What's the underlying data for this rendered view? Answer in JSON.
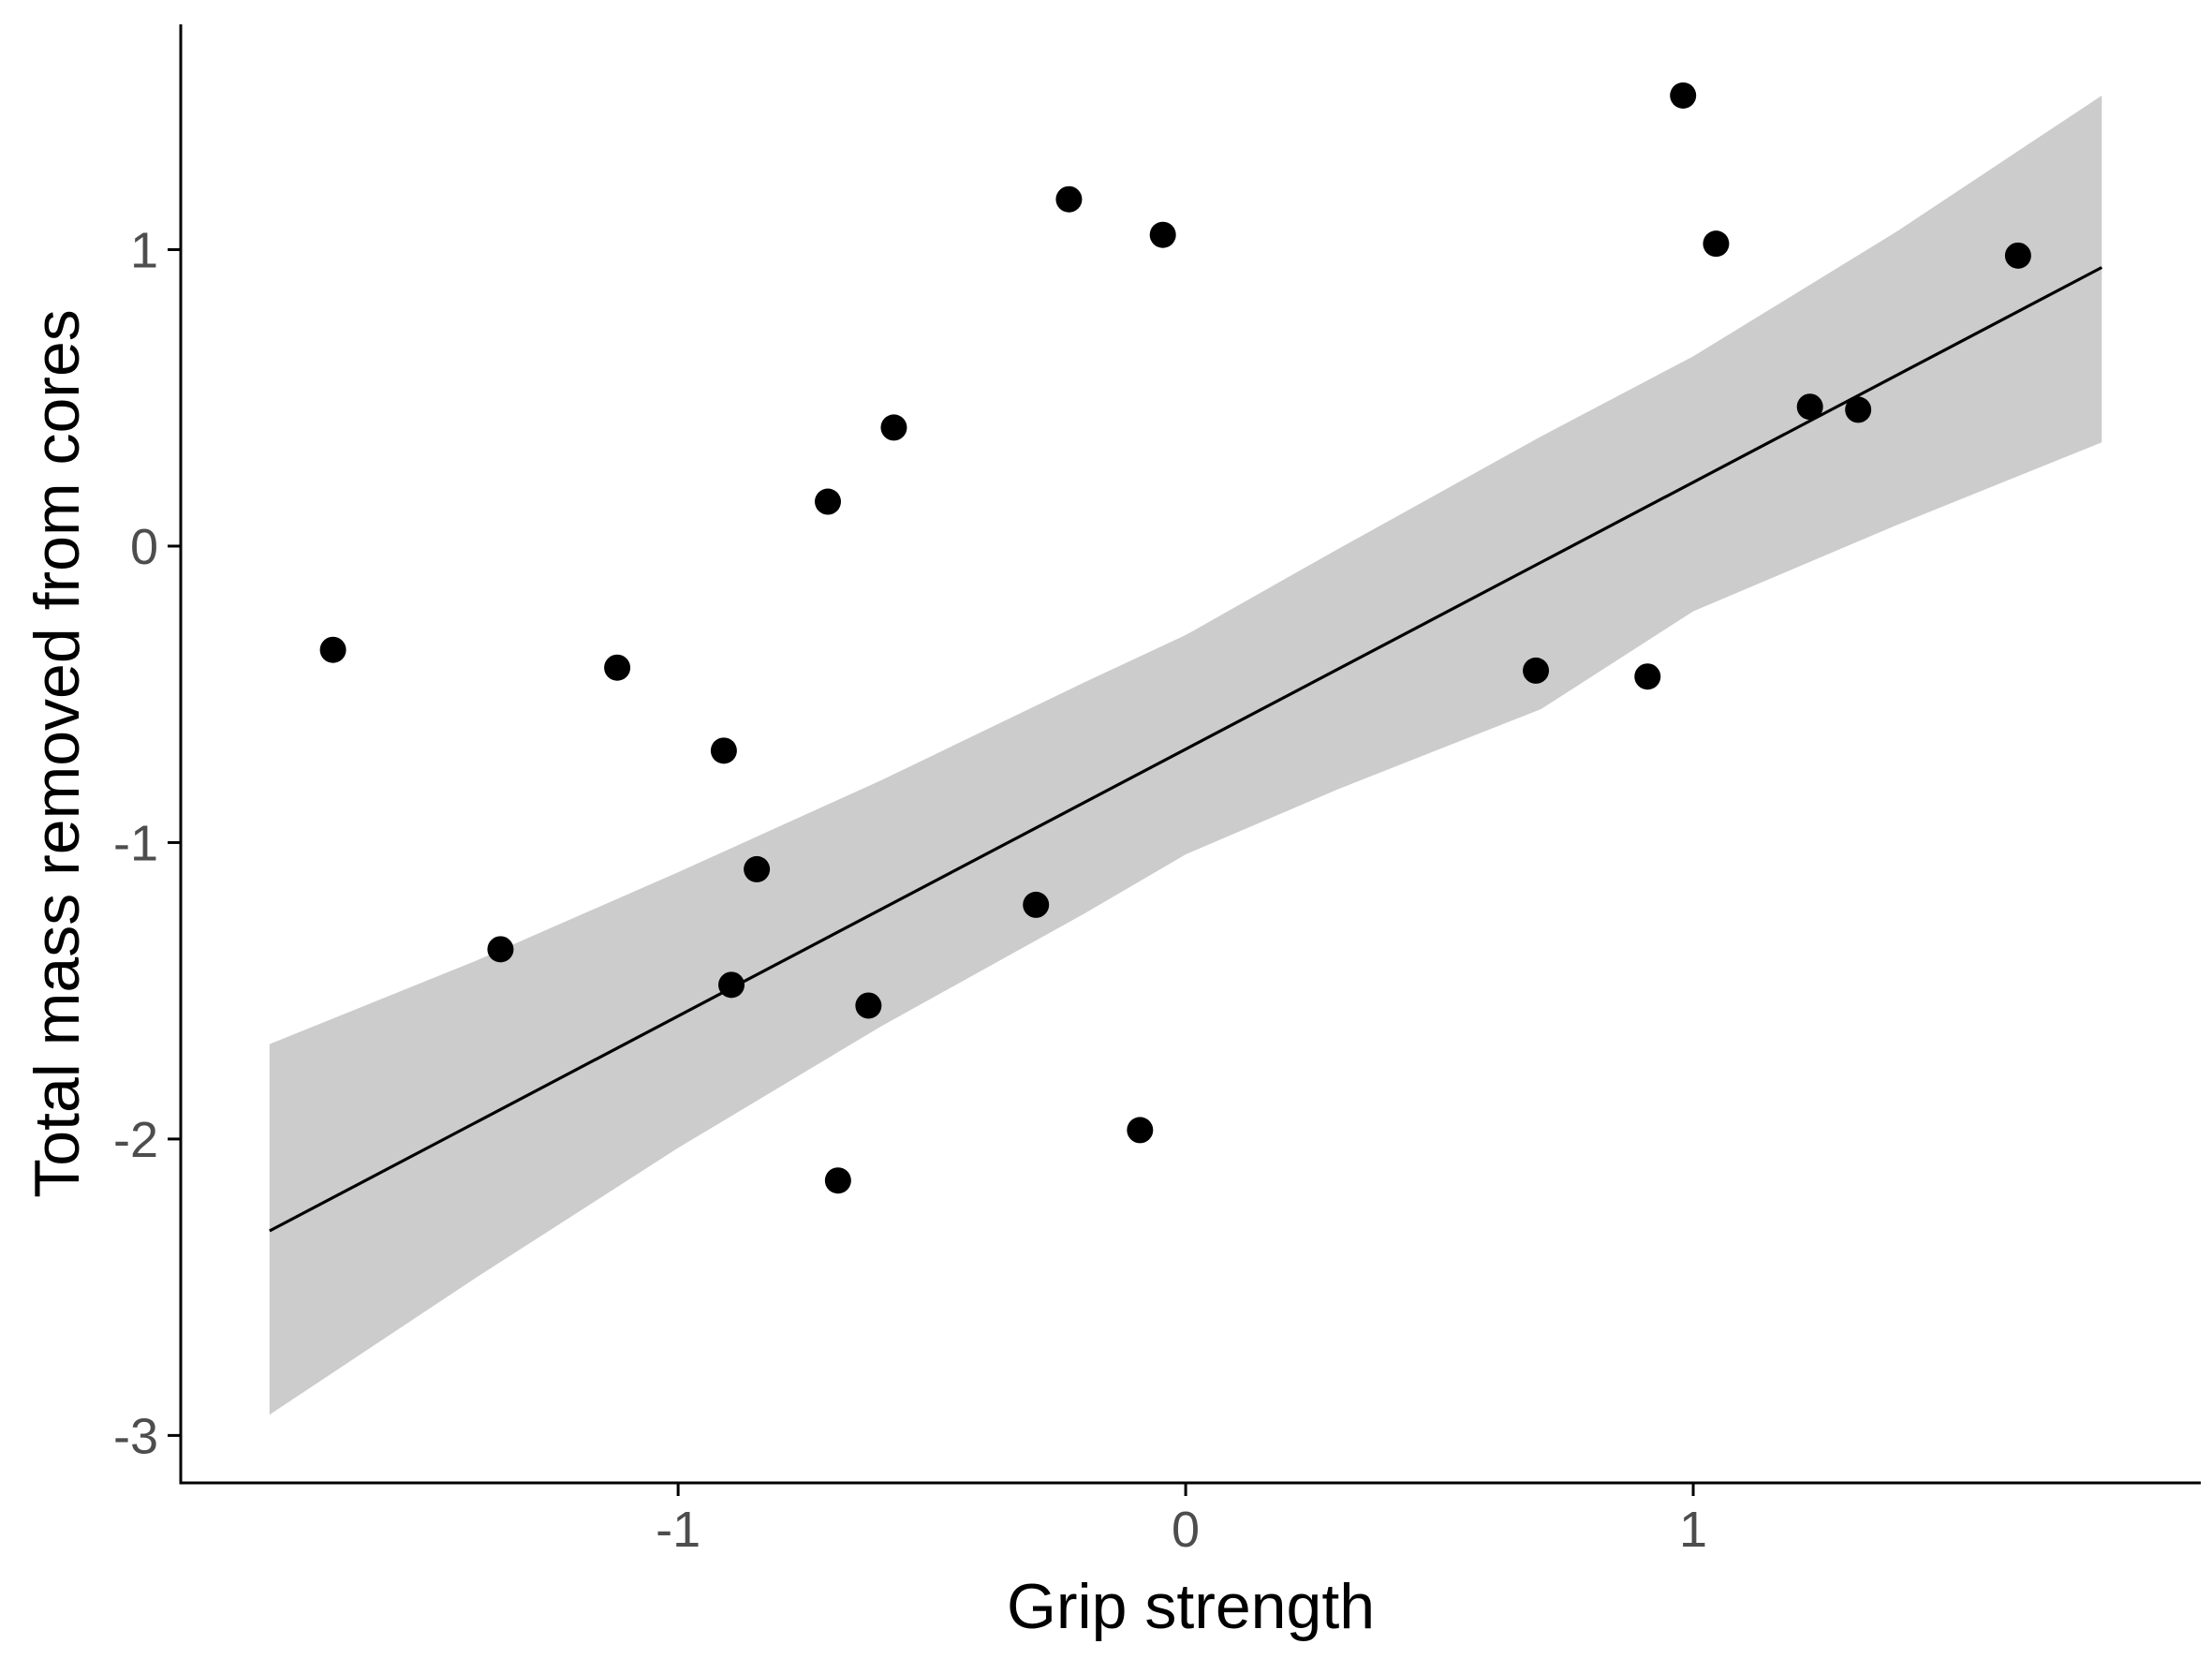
{
  "chart_data": {
    "type": "scatter",
    "title": "",
    "xlabel": "Grip strength",
    "ylabel": "Total mass removed from cores",
    "xlim": [
      -1.98,
      2.0
    ],
    "ylim": [
      -3.16,
      1.76
    ],
    "xticks": [
      -1,
      0,
      1
    ],
    "xtick_labels": [
      "-1",
      "0",
      "1"
    ],
    "yticks": [
      -3,
      -2,
      -1,
      0,
      1
    ],
    "ytick_labels": [
      "-3",
      "-2",
      "-1",
      "0",
      "1"
    ],
    "grid": false,
    "legend": "none",
    "series": [
      {
        "type": "scatter",
        "points": [
          {
            "x": -1.68,
            "y": -0.35
          },
          {
            "x": -1.35,
            "y": -1.36
          },
          {
            "x": -1.12,
            "y": -0.41
          },
          {
            "x": -0.91,
            "y": -0.69
          },
          {
            "x": -0.895,
            "y": -1.48
          },
          {
            "x": -0.845,
            "y": -1.09
          },
          {
            "x": -0.705,
            "y": 0.15
          },
          {
            "x": -0.685,
            "y": -2.14
          },
          {
            "x": -0.625,
            "y": -1.55
          },
          {
            "x": -0.575,
            "y": 0.4
          },
          {
            "x": -0.295,
            "y": -1.21
          },
          {
            "x": -0.23,
            "y": 1.17
          },
          {
            "x": -0.09,
            "y": -1.97
          },
          {
            "x": -0.045,
            "y": 1.05
          },
          {
            "x": 0.69,
            "y": -0.42
          },
          {
            "x": 0.91,
            "y": -0.44
          },
          {
            "x": 0.98,
            "y": 1.52
          },
          {
            "x": 1.045,
            "y": 1.02
          },
          {
            "x": 1.23,
            "y": 0.47
          },
          {
            "x": 1.325,
            "y": 0.46
          },
          {
            "x": 1.64,
            "y": 0.98
          }
        ]
      },
      {
        "type": "line",
        "x": [
          -1.805,
          1.805
        ],
        "y": [
          -2.31,
          0.94
        ]
      }
    ],
    "band": {
      "x": [
        -1.805,
        -1.4,
        -1.0,
        -0.6,
        -0.2,
        0.0,
        0.3,
        0.7,
        1.0,
        1.4,
        1.805
      ],
      "upper": [
        -1.68,
        -1.4,
        -1.1,
        -0.79,
        -0.46,
        -0.3,
        -0.01,
        0.37,
        0.64,
        1.06,
        1.52
      ],
      "lower": [
        -2.93,
        -2.47,
        -2.03,
        -1.62,
        -1.24,
        -1.04,
        -0.82,
        -0.55,
        -0.22,
        0.07,
        0.35
      ]
    },
    "colors": {
      "point": "#000000",
      "line": "#000000",
      "band": "#cccccc",
      "axis": "#000000",
      "tick_label": "#4d4d4d"
    }
  }
}
